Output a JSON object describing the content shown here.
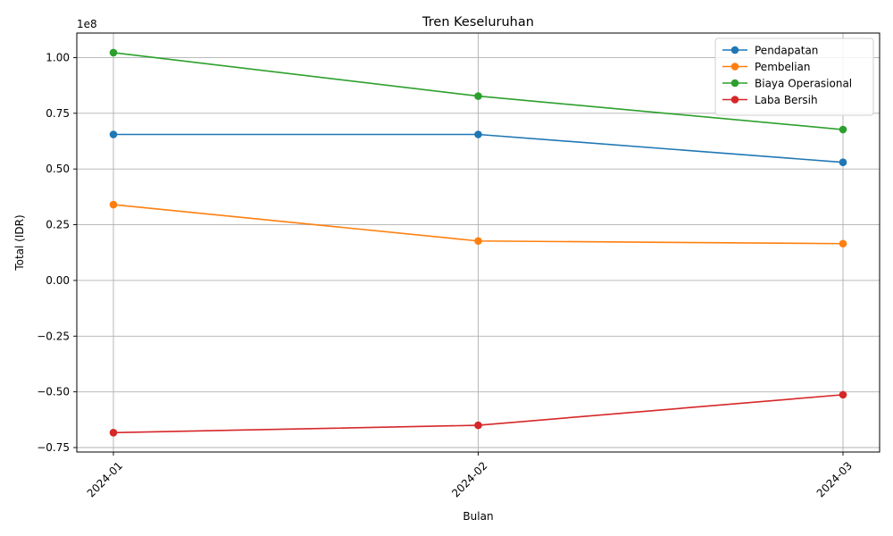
{
  "chart_data": {
    "type": "line",
    "title": "Tren Keseluruhan",
    "xlabel": "Bulan",
    "ylabel": "Total (IDR)",
    "y_multiplier_label": "1e8",
    "categories": [
      "2024-01",
      "2024-02",
      "2024-03"
    ],
    "ylim": [
      -0.77,
      1.11
    ],
    "yticks": [
      -0.75,
      -0.5,
      -0.25,
      0.0,
      0.25,
      0.5,
      0.75,
      1.0
    ],
    "ytick_labels": [
      "−0.75",
      "−0.50",
      "−0.25",
      "0.00",
      "0.25",
      "0.50",
      "0.75",
      "1.00"
    ],
    "grid": true,
    "legend_position": "top-right",
    "series": [
      {
        "name": "Pendapatan",
        "color": "#1f77b4",
        "values": [
          0.655,
          0.655,
          0.53
        ]
      },
      {
        "name": "Pembelian",
        "color": "#ff7f0e",
        "values": [
          0.34,
          0.177,
          0.165
        ]
      },
      {
        "name": "Biaya Operasional",
        "color": "#2ca02c",
        "values": [
          1.022,
          0.827,
          0.677
        ]
      },
      {
        "name": "Laba Bersih",
        "color": "#d62728",
        "values": [
          -0.683,
          -0.65,
          -0.513
        ]
      }
    ]
  }
}
